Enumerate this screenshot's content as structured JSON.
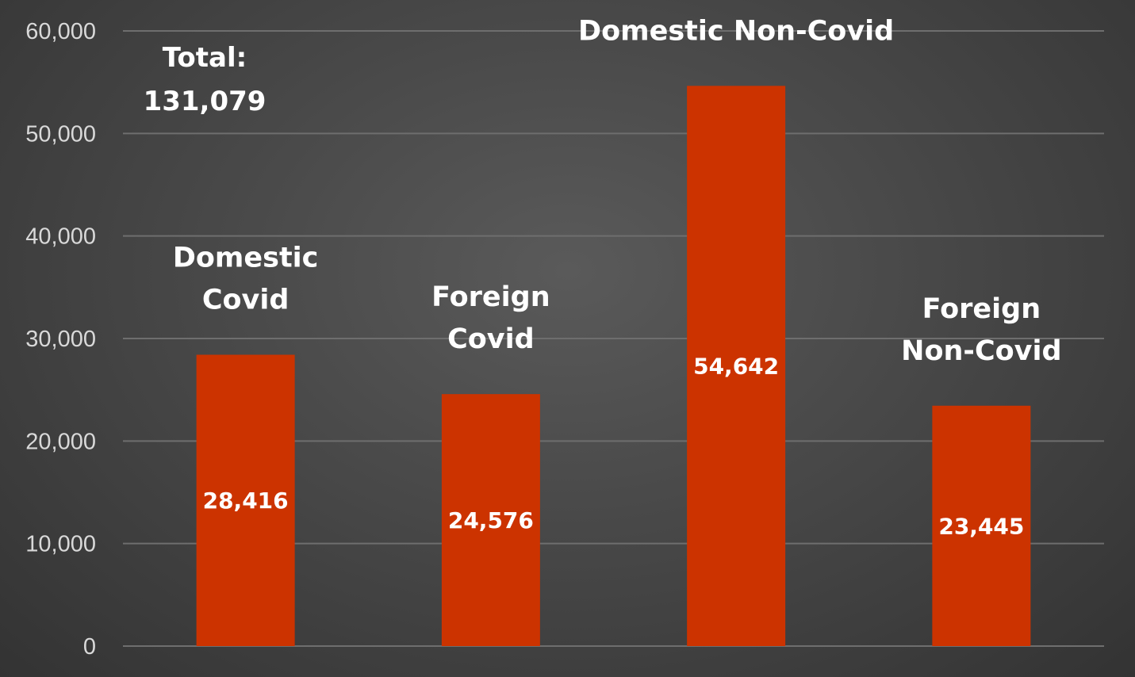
{
  "chart_data": {
    "type": "bar",
    "categories": [
      "Domestic Covid",
      "Foreign Covid",
      "Domestic Non-Covid",
      "Foreign Non-Covid"
    ],
    "category_label_lines": [
      [
        "Domestic",
        "Covid"
      ],
      [
        "Foreign",
        "Covid"
      ],
      [
        "Domestic Non-Covid"
      ],
      [
        "Foreign",
        "Non-Covid"
      ]
    ],
    "values": [
      28416,
      24576,
      54642,
      23445
    ],
    "data_labels": [
      "28,416",
      "24,576",
      "54,642",
      "23,445"
    ],
    "ylim": [
      0,
      60000
    ],
    "y_ticks": [
      0,
      10000,
      20000,
      30000,
      40000,
      50000,
      60000
    ],
    "y_tick_labels": [
      "0",
      "10,000",
      "20,000",
      "30,000",
      "40,000",
      "50,000",
      "60,000"
    ],
    "annotation": {
      "lines": [
        "Total:",
        "131,079"
      ]
    },
    "grid": true,
    "legend": "none"
  },
  "colors": {
    "bar": "#cc3300",
    "grid": "#6e6e6e",
    "text": "#ffffff",
    "tick_text": "#d9d9d9"
  }
}
